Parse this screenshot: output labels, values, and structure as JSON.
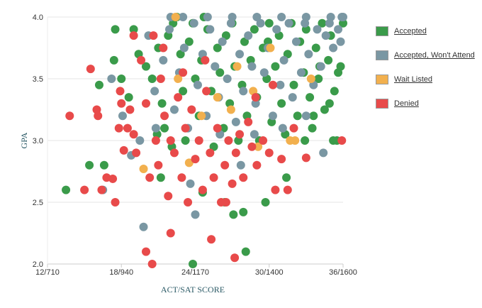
{
  "chart_data": {
    "type": "scatter",
    "xlabel": "ACT/SAT SCORE",
    "ylabel": "GPA",
    "xlim": [
      12,
      36
    ],
    "ylim": [
      2.0,
      4.0
    ],
    "x_ticks": [
      {
        "value": 12,
        "label": "12/710"
      },
      {
        "value": 18,
        "label": "18/940"
      },
      {
        "value": 24,
        "label": "24/1170"
      },
      {
        "value": 30,
        "label": "30/1400"
      },
      {
        "value": 36,
        "label": "36/1600"
      }
    ],
    "y_ticks": [
      {
        "value": 2.0,
        "label": "2.0"
      },
      {
        "value": 2.5,
        "label": "2.5"
      },
      {
        "value": 3.0,
        "label": "3.0"
      },
      {
        "value": 3.5,
        "label": "3.5"
      },
      {
        "value": 4.0,
        "label": "4.0"
      }
    ],
    "grid": "horizontal",
    "legend_position": "right",
    "series": [
      {
        "name": "Accepted",
        "color": "#3a9b4a",
        "points": [
          [
            13.5,
            2.6
          ],
          [
            15.4,
            2.8
          ],
          [
            16.6,
            2.8
          ],
          [
            16.2,
            3.45
          ],
          [
            17.5,
            3.9
          ],
          [
            17.4,
            3.65
          ],
          [
            18,
            3.5
          ],
          [
            18.6,
            3.35
          ],
          [
            19,
            3.9
          ],
          [
            19.4,
            3.7
          ],
          [
            20,
            3.6
          ],
          [
            20.5,
            3.5
          ],
          [
            21,
            3.75
          ],
          [
            21.3,
            3.3
          ],
          [
            21.5,
            3.1
          ],
          [
            21.8,
            3.85
          ],
          [
            22.2,
            3.95
          ],
          [
            22.5,
            4.0
          ],
          [
            22.8,
            3.7
          ],
          [
            23,
            3.4
          ],
          [
            23.2,
            3.0
          ],
          [
            23.5,
            3.8
          ],
          [
            23.8,
            3.95
          ],
          [
            24,
            3.5
          ],
          [
            24.3,
            3.2
          ],
          [
            24.5,
            3.65
          ],
          [
            24.7,
            4.0
          ],
          [
            25,
            3.9
          ],
          [
            25.3,
            3.4
          ],
          [
            25.5,
            2.95
          ],
          [
            25.8,
            3.75
          ],
          [
            26,
            3.55
          ],
          [
            26.3,
            3.1
          ],
          [
            26.5,
            3.85
          ],
          [
            26.8,
            3.3
          ],
          [
            27,
            3.95
          ],
          [
            27.2,
            3.6
          ],
          [
            27.5,
            3.0
          ],
          [
            27.8,
            3.45
          ],
          [
            28,
            3.8
          ],
          [
            28.2,
            3.2
          ],
          [
            28.5,
            3.65
          ],
          [
            28.8,
            3.9
          ],
          [
            29,
            3.35
          ],
          [
            29.2,
            3.0
          ],
          [
            29.5,
            3.75
          ],
          [
            29.8,
            3.5
          ],
          [
            30,
            3.95
          ],
          [
            30.2,
            3.15
          ],
          [
            30.5,
            3.6
          ],
          [
            30.8,
            3.85
          ],
          [
            31,
            3.3
          ],
          [
            31.3,
            3.05
          ],
          [
            31.5,
            3.7
          ],
          [
            31.8,
            3.95
          ],
          [
            32,
            3.45
          ],
          [
            32.3,
            3.2
          ],
          [
            32.5,
            3.8
          ],
          [
            32.8,
            3.55
          ],
          [
            33,
            3.9
          ],
          [
            33.3,
            3.35
          ],
          [
            33.5,
            3.1
          ],
          [
            33.8,
            3.75
          ],
          [
            34,
            3.5
          ],
          [
            34.3,
            3.95
          ],
          [
            34.5,
            3.25
          ],
          [
            34.8,
            3.65
          ],
          [
            35,
            3.85
          ],
          [
            35.3,
            3.4
          ],
          [
            35.5,
            3.0
          ],
          [
            35.8,
            3.6
          ],
          [
            36,
            3.95
          ],
          [
            35.6,
            3.55
          ],
          [
            34.9,
            3.3
          ],
          [
            29.7,
            2.5
          ],
          [
            31.4,
            2.7
          ],
          [
            27.9,
            2.42
          ],
          [
            28.1,
            2.1
          ],
          [
            23.8,
            2.0
          ],
          [
            21.2,
            2.7
          ],
          [
            22.1,
            2.95
          ],
          [
            20.9,
            3.05
          ],
          [
            24.6,
            2.58
          ],
          [
            26.4,
            2.5
          ],
          [
            27.1,
            2.4
          ],
          [
            32.9,
            3.0
          ],
          [
            33.6,
            3.2
          ],
          [
            35.2,
            3.0
          ],
          [
            34.1,
            3.6
          ],
          [
            29.9,
            3.8
          ]
        ]
      },
      {
        "name": "Accepted, Won't Attend",
        "color": "#7a97a3",
        "points": [
          [
            16.5,
            2.6
          ],
          [
            17.2,
            3.5
          ],
          [
            18.1,
            3.2
          ],
          [
            19.5,
            3.0
          ],
          [
            20.2,
            3.85
          ],
          [
            20.7,
            3.4
          ],
          [
            21.4,
            3.65
          ],
          [
            21.9,
            3.9
          ],
          [
            22.3,
            3.25
          ],
          [
            22.7,
            3.55
          ],
          [
            23.1,
            3.75
          ],
          [
            23.4,
            3.1
          ],
          [
            23.9,
            3.95
          ],
          [
            24.2,
            3.45
          ],
          [
            24.6,
            3.7
          ],
          [
            24.9,
            3.2
          ],
          [
            25.2,
            3.9
          ],
          [
            25.6,
            3.6
          ],
          [
            25.9,
            3.35
          ],
          [
            26.2,
            3.8
          ],
          [
            26.6,
            3.5
          ],
          [
            26.9,
            3.95
          ],
          [
            27.3,
            3.15
          ],
          [
            27.6,
            3.7
          ],
          [
            27.9,
            3.4
          ],
          [
            28.3,
            3.85
          ],
          [
            28.6,
            3.6
          ],
          [
            28.9,
            3.3
          ],
          [
            29.3,
            3.95
          ],
          [
            29.6,
            3.55
          ],
          [
            29.9,
            3.75
          ],
          [
            30.3,
            3.2
          ],
          [
            30.6,
            3.9
          ],
          [
            30.9,
            3.45
          ],
          [
            31.2,
            3.65
          ],
          [
            31.6,
            3.95
          ],
          [
            31.9,
            3.35
          ],
          [
            32.2,
            3.8
          ],
          [
            32.6,
            3.55
          ],
          [
            32.9,
            3.95
          ],
          [
            33.2,
            3.7
          ],
          [
            33.6,
            3.45
          ],
          [
            33.9,
            3.9
          ],
          [
            34.2,
            3.6
          ],
          [
            34.6,
            3.85
          ],
          [
            34.9,
            3.95
          ],
          [
            35.2,
            3.75
          ],
          [
            35.6,
            3.9
          ],
          [
            35.9,
            4.0
          ],
          [
            35.8,
            3.8
          ],
          [
            34.4,
            2.9
          ],
          [
            27.7,
            2.8
          ],
          [
            23.6,
            2.65
          ],
          [
            24.0,
            2.4
          ],
          [
            19.8,
            2.3
          ],
          [
            18.8,
            2.88
          ],
          [
            26.0,
            3.05
          ],
          [
            28.8,
            3.05
          ],
          [
            31.1,
            3.1
          ],
          [
            33.0,
            3.2
          ],
          [
            22.0,
            4.0
          ],
          [
            23.0,
            4.0
          ],
          [
            25.0,
            4.0
          ],
          [
            27.0,
            4.0
          ],
          [
            29.0,
            4.0
          ],
          [
            31.0,
            4.0
          ],
          [
            33.0,
            4.0
          ],
          [
            35.0,
            4.0
          ],
          [
            36.0,
            4.0
          ],
          [
            20.8,
            3.1
          ]
        ]
      },
      {
        "name": "Wait Listed",
        "color": "#f2b04e",
        "points": [
          [
            19.8,
            2.77
          ],
          [
            23.5,
            2.82
          ],
          [
            22.6,
            3.5
          ],
          [
            24.5,
            3.2
          ],
          [
            25.8,
            3.35
          ],
          [
            27.4,
            3.6
          ],
          [
            28.7,
            3.4
          ],
          [
            30.1,
            3.75
          ],
          [
            31.7,
            3.0
          ],
          [
            33.4,
            3.5
          ],
          [
            32.1,
            3.0
          ],
          [
            26.9,
            3.25
          ],
          [
            22.4,
            4.0
          ],
          [
            29.1,
            2.95
          ]
        ]
      },
      {
        "name": "Denied",
        "color": "#e84a4a",
        "points": [
          [
            13.8,
            3.2
          ],
          [
            15.5,
            3.58
          ],
          [
            15.0,
            2.6
          ],
          [
            16.0,
            3.25
          ],
          [
            16.1,
            3.2
          ],
          [
            16.4,
            2.6
          ],
          [
            16.8,
            2.7
          ],
          [
            17.3,
            2.69
          ],
          [
            17.5,
            2.5
          ],
          [
            17.9,
            3.4
          ],
          [
            18.0,
            3.3
          ],
          [
            18.2,
            2.92
          ],
          [
            18.5,
            3.1
          ],
          [
            18.7,
            3.25
          ],
          [
            19.0,
            3.05
          ],
          [
            19.2,
            2.9
          ],
          [
            19.6,
            3.65
          ],
          [
            20.0,
            3.3
          ],
          [
            20.3,
            2.7
          ],
          [
            20.6,
            3.85
          ],
          [
            20.8,
            3.0
          ],
          [
            21.0,
            2.8
          ],
          [
            21.2,
            3.5
          ],
          [
            21.5,
            3.2
          ],
          [
            21.8,
            2.55
          ],
          [
            22.0,
            3.0
          ],
          [
            22.3,
            2.9
          ],
          [
            22.6,
            3.35
          ],
          [
            22.9,
            2.7
          ],
          [
            23.2,
            3.1
          ],
          [
            23.4,
            2.5
          ],
          [
            23.7,
            3.25
          ],
          [
            24.0,
            2.85
          ],
          [
            24.3,
            3.0
          ],
          [
            24.6,
            2.6
          ],
          [
            24.9,
            3.4
          ],
          [
            25.2,
            2.9
          ],
          [
            25.5,
            2.7
          ],
          [
            25.8,
            3.1
          ],
          [
            26.1,
            2.5
          ],
          [
            26.4,
            2.8
          ],
          [
            26.7,
            3.0
          ],
          [
            27.0,
            2.65
          ],
          [
            27.3,
            2.9
          ],
          [
            27.6,
            3.05
          ],
          [
            27.9,
            2.7
          ],
          [
            28.3,
            3.15
          ],
          [
            28.6,
            2.95
          ],
          [
            29.0,
            2.8
          ],
          [
            29.5,
            3.0
          ],
          [
            30.0,
            2.9
          ],
          [
            30.5,
            2.6
          ],
          [
            31.0,
            2.85
          ],
          [
            31.5,
            2.6
          ],
          [
            32.0,
            3.1
          ],
          [
            33.0,
            2.86
          ],
          [
            35.9,
            3.0
          ],
          [
            20.0,
            2.1
          ],
          [
            20.5,
            2.0
          ],
          [
            25.3,
            2.2
          ],
          [
            27.2,
            2.05
          ],
          [
            26.5,
            2.5
          ],
          [
            22.0,
            2.25
          ],
          [
            19.0,
            3.85
          ],
          [
            17.8,
            3.1
          ],
          [
            23.0,
            3.55
          ],
          [
            24.8,
            3.65
          ],
          [
            21.4,
            3.75
          ],
          [
            30.3,
            3.45
          ],
          [
            28.9,
            3.35
          ]
        ]
      }
    ]
  },
  "legend": {
    "items": [
      {
        "label": "Accepted",
        "color": "#3a9b4a"
      },
      {
        "label": "Accepted, Won't Attend",
        "color": "#7a97a3"
      },
      {
        "label": "Wait Listed",
        "color": "#f2b04e"
      },
      {
        "label": "Denied",
        "color": "#e84a4a"
      }
    ]
  }
}
